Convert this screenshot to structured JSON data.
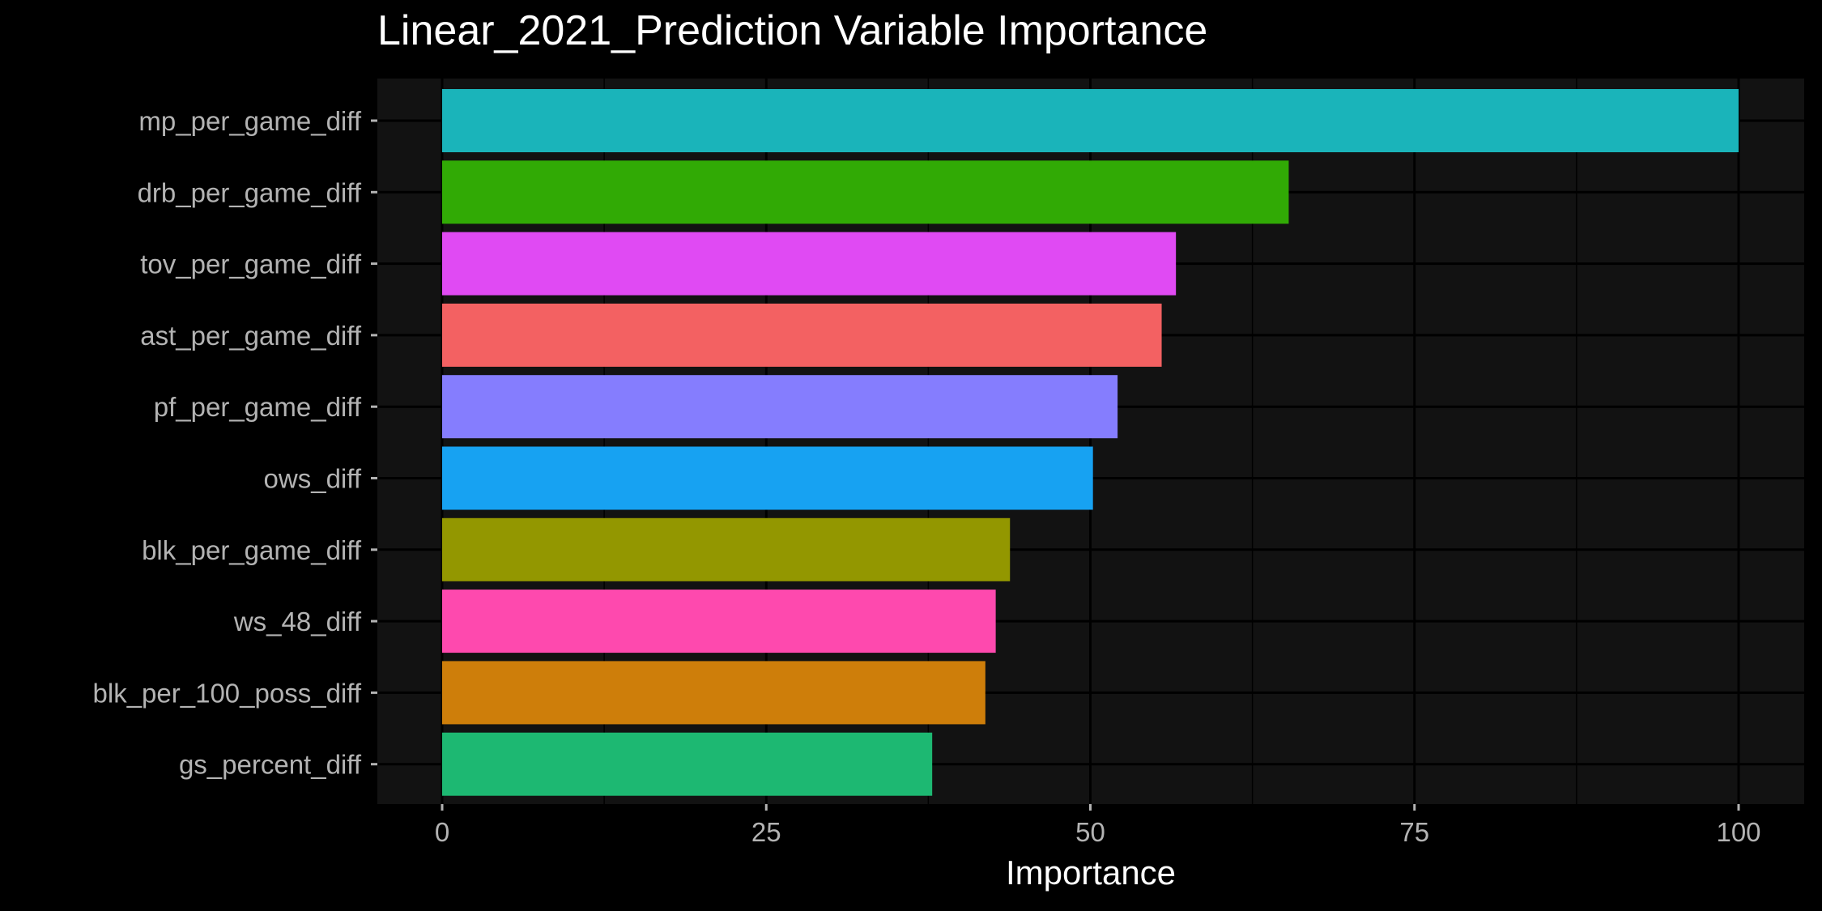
{
  "chart_data": {
    "type": "bar",
    "orientation": "horizontal",
    "title": "Linear_2021_Prediction Variable Importance",
    "xlabel": "Importance",
    "ylabel": "",
    "xlim": [
      0,
      100
    ],
    "x_ticks": [
      0,
      25,
      50,
      75,
      100
    ],
    "grid": true,
    "legend": "none",
    "categories": [
      "mp_per_game_diff",
      "drb_per_game_diff",
      "tov_per_game_diff",
      "ast_per_game_diff",
      "pf_per_game_diff",
      "ows_diff",
      "blk_per_game_diff",
      "ws_48_diff",
      "blk_per_100_poss_diff",
      "gs_percent_diff"
    ],
    "values": [
      100,
      65.3,
      56.6,
      55.5,
      52.1,
      50.2,
      43.8,
      42.7,
      41.9,
      37.8
    ],
    "colors": [
      "#1AB4BA",
      "#31AA05",
      "#E04AF3",
      "#F36162",
      "#857DFE",
      "#17A2F2",
      "#939700",
      "#FE49AE",
      "#CE7E0A",
      "#1DB872"
    ]
  },
  "style": {
    "background": "#000000",
    "panel_background": "#121212",
    "grid_color": "#000000",
    "text_color": "#b3b3b3",
    "title_color": "#ffffff"
  }
}
